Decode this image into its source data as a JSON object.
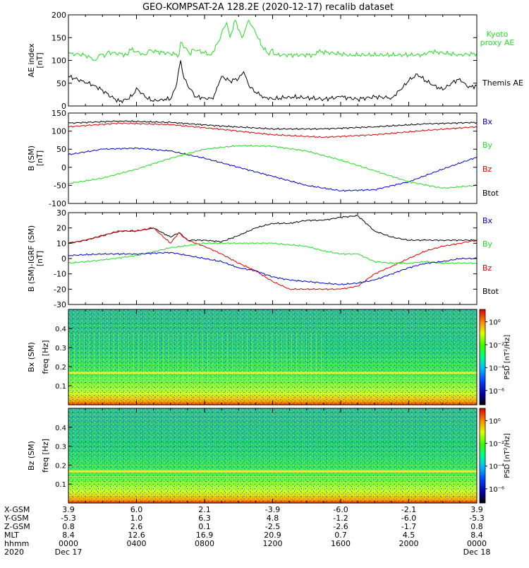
{
  "title": "GEO-KOMPSAT-2A 128.2E (2020-12-17) recalib dataset",
  "colors": {
    "black": "#000000",
    "green": "#22dd22",
    "red": "#dd0000",
    "blue": "#0000cc"
  },
  "chart_data": [
    {
      "id": "ae",
      "type": "line",
      "ylabel": "AE index",
      "yunit": "[nT]",
      "ylim": [
        0,
        200
      ],
      "yticks": [
        "0",
        "50",
        "100",
        "150",
        "200"
      ],
      "legend": [
        "Kyoto",
        "proxy AE",
        "Themis AE"
      ],
      "series": [
        {
          "name": "Kyoto proxy AE",
          "color": "green",
          "x": [
            0,
            1,
            1.6,
            1.8,
            2.2,
            2.3,
            3.5,
            3.6,
            4.5,
            4.7,
            6.5,
            6.6,
            7.2,
            7.3,
            8.4,
            8.5,
            8.8,
            9.0,
            9.3,
            9.5,
            9.8,
            10.2,
            10.6,
            11.0,
            11.4,
            11.8,
            12.0,
            12.1,
            14.5,
            14.6,
            16.5,
            16.6,
            21.0,
            21.2,
            23.0,
            24
          ],
          "y": [
            115,
            112,
            100,
            112,
            112,
            118,
            112,
            125,
            112,
            122,
            112,
            140,
            112,
            125,
            112,
            120,
            140,
            160,
            183,
            150,
            188,
            150,
            188,
            160,
            130,
            112,
            125,
            112,
            112,
            120,
            112,
            112,
            112,
            120,
            112,
            115
          ]
        },
        {
          "name": "Themis AE",
          "color": "black",
          "x": [
            0,
            0.8,
            1.5,
            2.0,
            2.5,
            3.0,
            3.5,
            3.8,
            4.0,
            4.5,
            5.0,
            5.5,
            6.0,
            6.3,
            6.6,
            6.8,
            7.0,
            7.5,
            8.0,
            8.5,
            8.8,
            9.0,
            9.5,
            10.0,
            10.3,
            10.6,
            11.0,
            11.5,
            12.0,
            13.0,
            14.0,
            15.0,
            16.0,
            17.0,
            18.0,
            19.0,
            19.5,
            20.0,
            20.5,
            21.0,
            21.5,
            22.0,
            22.5,
            23.0,
            23.5,
            24
          ],
          "y": [
            65,
            55,
            45,
            35,
            20,
            10,
            15,
            25,
            40,
            20,
            10,
            15,
            15,
            40,
            100,
            60,
            45,
            20,
            18,
            15,
            45,
            65,
            55,
            60,
            75,
            45,
            30,
            20,
            15,
            20,
            18,
            15,
            20,
            15,
            20,
            18,
            35,
            55,
            70,
            55,
            45,
            35,
            50,
            60,
            40,
            45
          ]
        }
      ]
    },
    {
      "id": "bfield",
      "type": "line",
      "ylabel": "B (SM)",
      "yunit": "[nT]",
      "ylim": [
        -100,
        150
      ],
      "yticks": [
        "-100",
        "-50",
        "0",
        "50",
        "100",
        "150"
      ],
      "legend": [
        "Bx",
        "By",
        "Bz",
        "Btot"
      ],
      "series": [
        {
          "name": "Btot",
          "color": "black",
          "x": [
            0,
            3,
            6,
            9,
            12,
            15,
            18,
            21,
            24
          ],
          "y": [
            122,
            128,
            124,
            114,
            106,
            106,
            112,
            120,
            124
          ]
        },
        {
          "name": "Bz",
          "color": "red",
          "x": [
            0,
            3,
            6,
            9,
            12,
            15,
            18,
            21,
            24
          ],
          "y": [
            112,
            122,
            118,
            105,
            90,
            83,
            90,
            102,
            112
          ]
        },
        {
          "name": "Bx",
          "color": "blue",
          "x": [
            0,
            2,
            4,
            6,
            8,
            10,
            12,
            14,
            16,
            18,
            20,
            22,
            24
          ],
          "y": [
            35,
            50,
            53,
            45,
            25,
            0,
            -25,
            -50,
            -65,
            -62,
            -40,
            -5,
            28
          ]
        },
        {
          "name": "By",
          "color": "green",
          "x": [
            0,
            2,
            4,
            6,
            8,
            10,
            12,
            14,
            16,
            18,
            20,
            22,
            24
          ],
          "y": [
            -45,
            -30,
            -5,
            25,
            50,
            60,
            58,
            45,
            20,
            -10,
            -40,
            -58,
            -50
          ]
        }
      ]
    },
    {
      "id": "dbfield",
      "type": "line",
      "ylabel": "B (SM)-IGRF (SM)",
      "yunit": "[nT]",
      "ylim": [
        -30,
        30
      ],
      "yticks": [
        "-30",
        "-20",
        "-10",
        "0",
        "10",
        "20",
        "30"
      ],
      "legend": [
        "Bx",
        "By",
        "Bz",
        "Btot"
      ],
      "series": [
        {
          "name": "Btot",
          "color": "black",
          "x": [
            0,
            1,
            2,
            3,
            4,
            5,
            6,
            6.5,
            7,
            8,
            9,
            10,
            11,
            12,
            13,
            14,
            15,
            16,
            17,
            17.3,
            18,
            19,
            20,
            21,
            22,
            23,
            24
          ],
          "y": [
            10,
            12,
            15,
            18,
            18,
            20,
            14,
            17,
            12,
            12,
            11,
            15,
            20,
            23,
            23,
            25,
            25,
            27,
            28,
            25,
            18,
            14,
            12,
            12,
            12,
            12,
            12
          ]
        },
        {
          "name": "Bz",
          "color": "red",
          "x": [
            0,
            1,
            2,
            3,
            4,
            5,
            6,
            6.5,
            7,
            8,
            9,
            10,
            11,
            12,
            13,
            14,
            15,
            16,
            17,
            18,
            19,
            20,
            21,
            22,
            23,
            24
          ],
          "y": [
            10,
            12,
            15,
            18,
            18,
            20,
            10,
            17,
            12,
            8,
            3,
            -3,
            -8,
            -15,
            -20,
            -20,
            -20,
            -20,
            -18,
            -10,
            -5,
            0,
            5,
            8,
            10,
            12
          ]
        },
        {
          "name": "By",
          "color": "green",
          "x": [
            0,
            2,
            4,
            6,
            8,
            10,
            12,
            14,
            15,
            16,
            17,
            18,
            19,
            20,
            21,
            22,
            23,
            24
          ],
          "y": [
            -3,
            -1,
            2,
            7,
            10,
            10,
            10,
            8,
            5,
            3,
            3,
            -2,
            -3,
            -3,
            -2,
            -3,
            -3,
            -3
          ]
        },
        {
          "name": "Bx",
          "color": "blue",
          "x": [
            0,
            2,
            4,
            6,
            7,
            8,
            9,
            10,
            11,
            12,
            13,
            14,
            15,
            16,
            17,
            18,
            19,
            20,
            21,
            22,
            23,
            24
          ],
          "y": [
            2,
            3,
            3,
            4,
            2,
            0,
            -2,
            -6,
            -8,
            -12,
            -14,
            -15,
            -16,
            -17,
            -16,
            -14,
            -10,
            -6,
            -3,
            -2,
            0,
            0
          ]
        }
      ]
    },
    {
      "id": "spec_bx",
      "type": "heatmap",
      "ylabel": "Bx (SM)",
      "freq_label": "freq [Hz]",
      "ylim": [
        0,
        0.5
      ],
      "yticks": [
        "0.1",
        "0.2",
        "0.3",
        "0.4"
      ],
      "colorbar_label": "PSD [nT²/Hz]",
      "colorbar_ticks": [
        "10⁰",
        "10⁻²",
        "10⁻⁴",
        "10⁻⁶"
      ]
    },
    {
      "id": "spec_bz",
      "type": "heatmap",
      "ylabel": "Bz (SM)",
      "freq_label": "freq [Hz]",
      "ylim": [
        0,
        0.5
      ],
      "yticks": [
        "0.1",
        "0.2",
        "0.3",
        "0.4"
      ],
      "colorbar_label": "PSD [nT²/Hz]",
      "colorbar_ticks": [
        "10⁰",
        "10⁻²",
        "10⁻⁴",
        "10⁻⁶"
      ]
    }
  ],
  "xaxis": {
    "row_labels": [
      "X-GSM",
      "Y-GSM",
      "Z-GSM",
      "MLT",
      "hhmm",
      "2020"
    ],
    "columns": [
      [
        "3.9",
        "-5.3",
        "0.8",
        "8.4",
        "0000",
        "Dec 17"
      ],
      [
        "6.0",
        "1.0",
        "2.6",
        "12.6",
        "0400",
        ""
      ],
      [
        "2.1",
        "6.3",
        "0.1",
        "16.9",
        "0800",
        ""
      ],
      [
        "-3.9",
        "4.8",
        "-2.5",
        "20.9",
        "1200",
        ""
      ],
      [
        "-6.0",
        "-1.2",
        "-2.6",
        "0.7",
        "1600",
        ""
      ],
      [
        "-2.1",
        "-6.0",
        "-1.7",
        "4.5",
        "2000",
        ""
      ],
      [
        "3.9",
        "-5.3",
        "0.8",
        "8.4",
        "0000",
        "Dec 18"
      ]
    ]
  }
}
